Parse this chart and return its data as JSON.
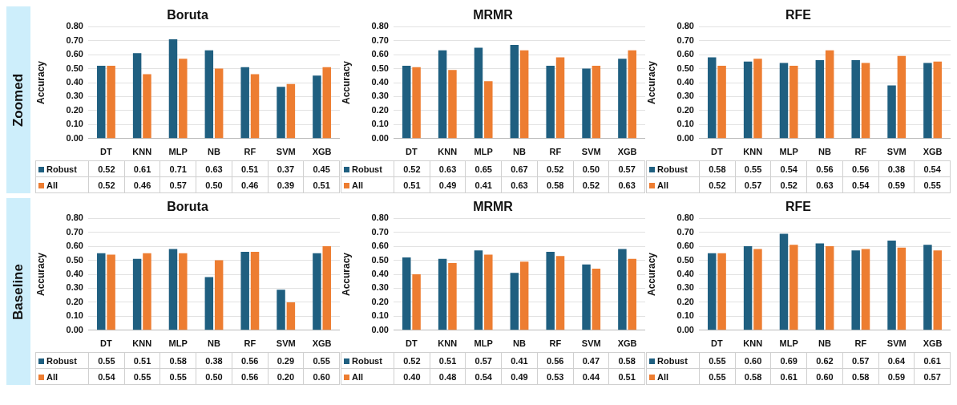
{
  "chart_data": [
    {
      "type": "bar",
      "title": "Boruta",
      "ylabel": "Accuracy",
      "annotations": [
        "Zoomed"
      ],
      "categories": [
        "DT",
        "KNN",
        "MLP",
        "NB",
        "RF",
        "SVM",
        "XGB"
      ],
      "series": [
        {
          "name": "Robust",
          "color": "#1f5f80",
          "values": [
            0.52,
            0.61,
            0.71,
            0.63,
            0.51,
            0.37,
            0.45
          ],
          "value_labels": [
            "0.52",
            "0.61",
            "0.71",
            "0.63",
            "0.51",
            "0.37",
            "0.45"
          ]
        },
        {
          "name": "All",
          "color": "#ed7d31",
          "values": [
            0.52,
            0.46,
            0.57,
            0.5,
            0.46,
            0.39,
            0.51
          ],
          "value_labels": [
            "0.52",
            "0.46",
            "0.57",
            "0.50",
            "0.46",
            "0.39",
            "0.51"
          ]
        }
      ],
      "ylim": [
        0,
        0.8
      ],
      "yticks": [
        {
          "value": 0,
          "label": "0.00"
        },
        {
          "value": 0.1,
          "label": "0.10"
        },
        {
          "value": 0.2,
          "label": "0.20"
        },
        {
          "value": 0.3,
          "label": "0.30"
        },
        {
          "value": 0.4,
          "label": "0.40"
        },
        {
          "value": 0.5,
          "label": "0.50"
        },
        {
          "value": 0.6,
          "label": "0.60"
        },
        {
          "value": 0.7,
          "label": "0.70"
        },
        {
          "value": 0.8,
          "label": "0.80"
        }
      ],
      "grid": "y",
      "legend": "bottom"
    },
    {
      "type": "bar",
      "title": "MRMR",
      "ylabel": "Accuracy",
      "categories": [
        "DT",
        "KNN",
        "MLP",
        "NB",
        "RF",
        "SVM",
        "XGB"
      ],
      "series": [
        {
          "name": "Robust",
          "color": "#1f5f80",
          "values": [
            0.52,
            0.63,
            0.65,
            0.67,
            0.52,
            0.5,
            0.57
          ],
          "value_labels": [
            "0.52",
            "0.63",
            "0.65",
            "0.67",
            "0.52",
            "0.50",
            "0.57"
          ]
        },
        {
          "name": "All",
          "color": "#ed7d31",
          "values": [
            0.51,
            0.49,
            0.41,
            0.63,
            0.58,
            0.52,
            0.63
          ],
          "value_labels": [
            "0.51",
            "0.49",
            "0.41",
            "0.63",
            "0.58",
            "0.52",
            "0.63"
          ]
        }
      ],
      "ylim": [
        0,
        0.8
      ],
      "yticks": [
        {
          "value": 0,
          "label": "0.00"
        },
        {
          "value": 0.1,
          "label": "0.10"
        },
        {
          "value": 0.2,
          "label": "0.20"
        },
        {
          "value": 0.3,
          "label": "0.30"
        },
        {
          "value": 0.4,
          "label": "0.40"
        },
        {
          "value": 0.5,
          "label": "0.50"
        },
        {
          "value": 0.6,
          "label": "0.60"
        },
        {
          "value": 0.7,
          "label": "0.70"
        },
        {
          "value": 0.8,
          "label": "0.80"
        }
      ],
      "grid": "y",
      "legend": "bottom"
    },
    {
      "type": "bar",
      "title": "RFE",
      "ylabel": "Accuracy",
      "categories": [
        "DT",
        "KNN",
        "MLP",
        "NB",
        "RF",
        "SVM",
        "XGB"
      ],
      "series": [
        {
          "name": "Robust",
          "color": "#1f5f80",
          "values": [
            0.58,
            0.55,
            0.54,
            0.56,
            0.56,
            0.38,
            0.54
          ],
          "value_labels": [
            "0.58",
            "0.55",
            "0.54",
            "0.56",
            "0.56",
            "0.38",
            "0.54"
          ]
        },
        {
          "name": "All",
          "color": "#ed7d31",
          "values": [
            0.52,
            0.57,
            0.52,
            0.63,
            0.54,
            0.59,
            0.55
          ],
          "value_labels": [
            "0.52",
            "0.57",
            "0.52",
            "0.63",
            "0.54",
            "0.59",
            "0.55"
          ]
        }
      ],
      "ylim": [
        0,
        0.8
      ],
      "yticks": [
        {
          "value": 0,
          "label": "0.00"
        },
        {
          "value": 0.1,
          "label": "0.10"
        },
        {
          "value": 0.2,
          "label": "0.20"
        },
        {
          "value": 0.3,
          "label": "0.30"
        },
        {
          "value": 0.4,
          "label": "0.40"
        },
        {
          "value": 0.5,
          "label": "0.50"
        },
        {
          "value": 0.6,
          "label": "0.60"
        },
        {
          "value": 0.7,
          "label": "0.70"
        },
        {
          "value": 0.8,
          "label": "0.80"
        }
      ],
      "grid": "y",
      "legend": "bottom"
    },
    {
      "type": "bar",
      "title": "Boruta",
      "ylabel": "Accuracy",
      "annotations": [
        "Baseline"
      ],
      "categories": [
        "DT",
        "KNN",
        "MLP",
        "NB",
        "RF",
        "SVM",
        "XGB"
      ],
      "series": [
        {
          "name": "Robust",
          "color": "#1f5f80",
          "values": [
            0.55,
            0.51,
            0.58,
            0.38,
            0.56,
            0.29,
            0.55
          ],
          "value_labels": [
            "0.55",
            "0.51",
            "0.58",
            "0.38",
            "0.56",
            "0.29",
            "0.55"
          ]
        },
        {
          "name": "All",
          "color": "#ed7d31",
          "values": [
            0.54,
            0.55,
            0.55,
            0.5,
            0.56,
            0.2,
            0.6
          ],
          "value_labels": [
            "0.54",
            "0.55",
            "0.55",
            "0.50",
            "0.56",
            "0.20",
            "0.60"
          ]
        }
      ],
      "ylim": [
        0,
        0.8
      ],
      "yticks": [
        {
          "value": 0,
          "label": "0.00"
        },
        {
          "value": 0.1,
          "label": "0.10"
        },
        {
          "value": 0.2,
          "label": "0.20"
        },
        {
          "value": 0.3,
          "label": "0.30"
        },
        {
          "value": 0.4,
          "label": "0.40"
        },
        {
          "value": 0.5,
          "label": "0.50"
        },
        {
          "value": 0.6,
          "label": "0.60"
        },
        {
          "value": 0.7,
          "label": "0.70"
        },
        {
          "value": 0.8,
          "label": "0.80"
        }
      ],
      "grid": "y",
      "legend": "bottom"
    },
    {
      "type": "bar",
      "title": "MRMR",
      "ylabel": "Accuracy",
      "categories": [
        "DT",
        "KNN",
        "MLP",
        "NB",
        "RF",
        "SVM",
        "XGB"
      ],
      "series": [
        {
          "name": "Robust",
          "color": "#1f5f80",
          "values": [
            0.52,
            0.51,
            0.57,
            0.41,
            0.56,
            0.47,
            0.58
          ],
          "value_labels": [
            "0.52",
            "0.51",
            "0.57",
            "0.41",
            "0.56",
            "0.47",
            "0.58"
          ]
        },
        {
          "name": "All",
          "color": "#ed7d31",
          "values": [
            0.4,
            0.48,
            0.54,
            0.49,
            0.53,
            0.44,
            0.51
          ],
          "value_labels": [
            "0.40",
            "0.48",
            "0.54",
            "0.49",
            "0.53",
            "0.44",
            "0.51"
          ]
        }
      ],
      "ylim": [
        0,
        0.8
      ],
      "yticks": [
        {
          "value": 0,
          "label": "0.00"
        },
        {
          "value": 0.1,
          "label": "0.10"
        },
        {
          "value": 0.2,
          "label": "0.20"
        },
        {
          "value": 0.3,
          "label": "0.30"
        },
        {
          "value": 0.4,
          "label": "0.40"
        },
        {
          "value": 0.5,
          "label": "0.50"
        },
        {
          "value": 0.6,
          "label": "0.60"
        },
        {
          "value": 0.7,
          "label": "0.70"
        },
        {
          "value": 0.8,
          "label": "0.80"
        }
      ],
      "grid": "y",
      "legend": "bottom"
    },
    {
      "type": "bar",
      "title": "RFE",
      "ylabel": "Accuracy",
      "categories": [
        "DT",
        "KNN",
        "MLP",
        "NB",
        "RF",
        "SVM",
        "XGB"
      ],
      "series": [
        {
          "name": "Robust",
          "color": "#1f5f80",
          "values": [
            0.55,
            0.6,
            0.69,
            0.62,
            0.57,
            0.64,
            0.61
          ],
          "value_labels": [
            "0.55",
            "0.60",
            "0.69",
            "0.62",
            "0.57",
            "0.64",
            "0.61"
          ]
        },
        {
          "name": "All",
          "color": "#ed7d31",
          "values": [
            0.55,
            0.58,
            0.61,
            0.6,
            0.58,
            0.59,
            0.57
          ],
          "value_labels": [
            "0.55",
            "0.58",
            "0.61",
            "0.60",
            "0.58",
            "0.59",
            "0.57"
          ]
        }
      ],
      "ylim": [
        0,
        0.8
      ],
      "yticks": [
        {
          "value": 0,
          "label": "0.00"
        },
        {
          "value": 0.1,
          "label": "0.10"
        },
        {
          "value": 0.2,
          "label": "0.20"
        },
        {
          "value": 0.3,
          "label": "0.30"
        },
        {
          "value": 0.4,
          "label": "0.40"
        },
        {
          "value": 0.5,
          "label": "0.50"
        },
        {
          "value": 0.6,
          "label": "0.60"
        },
        {
          "value": 0.7,
          "label": "0.70"
        },
        {
          "value": 0.8,
          "label": "0.80"
        }
      ],
      "grid": "y",
      "legend": "bottom"
    }
  ]
}
